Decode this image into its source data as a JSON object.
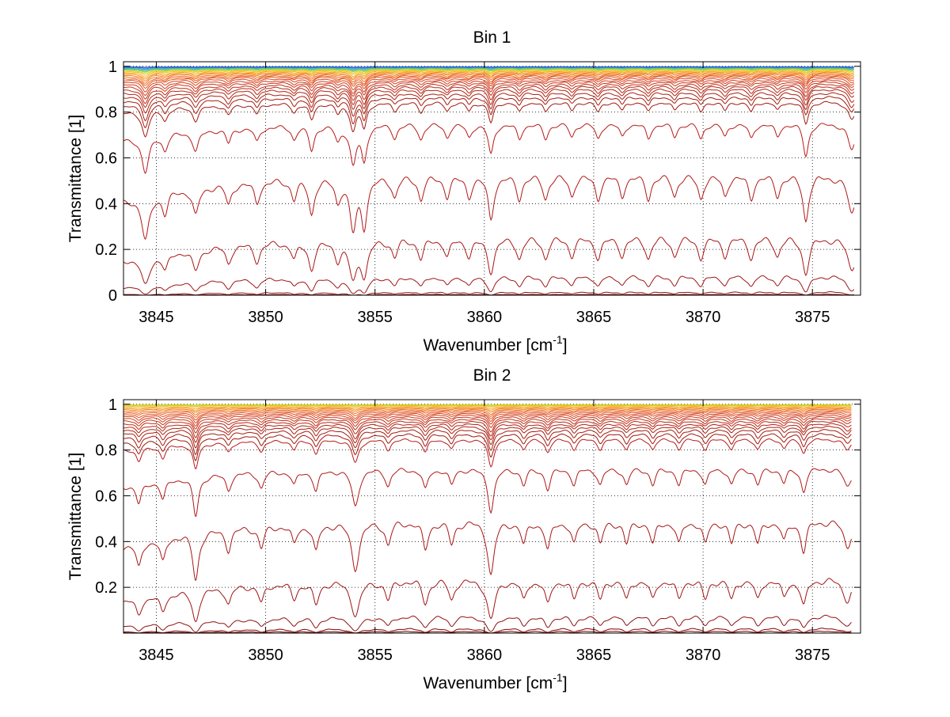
{
  "chart_data": [
    {
      "type": "line",
      "title": "Bin 1",
      "xlabel": "Wavenumber [cm",
      "xlabel_sup": "-1",
      "xlabel_tail": "]",
      "ylabel": "Transmittance [1]",
      "xlim": [
        3843.5,
        3877.2
      ],
      "ylim": [
        0,
        1.02
      ],
      "xticks": [
        3845,
        3850,
        3855,
        3860,
        3865,
        3870,
        3875
      ],
      "xtick_labels": [
        "3845",
        "3850",
        "3855",
        "3860",
        "3865",
        "3870",
        "3875"
      ],
      "yticks": [
        0,
        0.2,
        0.4,
        0.6,
        0.8,
        1
      ],
      "ytick_labels": [
        "0",
        "0.2",
        "0.4",
        "0.6",
        "0.8",
        "1"
      ],
      "grid": true,
      "x_end": 3876.9,
      "line_dips": [
        {
          "x": 3844.5,
          "depth": 1.0,
          "width": 0.18
        },
        {
          "x": 3845.4,
          "depth": 0.4,
          "width": 0.14
        },
        {
          "x": 3846.8,
          "depth": 0.5,
          "width": 0.16
        },
        {
          "x": 3848.3,
          "depth": 0.35,
          "width": 0.14
        },
        {
          "x": 3849.6,
          "depth": 0.35,
          "width": 0.14
        },
        {
          "x": 3851.3,
          "depth": 0.3,
          "width": 0.14
        },
        {
          "x": 3852.1,
          "depth": 0.6,
          "width": 0.14
        },
        {
          "x": 3853.3,
          "depth": 0.35,
          "width": 0.14
        },
        {
          "x": 3854.0,
          "depth": 1.0,
          "width": 0.16
        },
        {
          "x": 3854.5,
          "depth": 0.9,
          "width": 0.14
        },
        {
          "x": 3855.9,
          "depth": 0.3,
          "width": 0.14
        },
        {
          "x": 3857.1,
          "depth": 0.35,
          "width": 0.14
        },
        {
          "x": 3858.3,
          "depth": 0.3,
          "width": 0.14
        },
        {
          "x": 3859.3,
          "depth": 0.3,
          "width": 0.14
        },
        {
          "x": 3860.3,
          "depth": 0.75,
          "width": 0.14
        },
        {
          "x": 3861.6,
          "depth": 0.35,
          "width": 0.14
        },
        {
          "x": 3862.8,
          "depth": 0.35,
          "width": 0.14
        },
        {
          "x": 3864.0,
          "depth": 0.3,
          "width": 0.14
        },
        {
          "x": 3865.2,
          "depth": 0.35,
          "width": 0.14
        },
        {
          "x": 3866.3,
          "depth": 0.3,
          "width": 0.14
        },
        {
          "x": 3867.5,
          "depth": 0.35,
          "width": 0.14
        },
        {
          "x": 3868.7,
          "depth": 0.3,
          "width": 0.14
        },
        {
          "x": 3869.9,
          "depth": 0.35,
          "width": 0.14
        },
        {
          "x": 3871.0,
          "depth": 0.3,
          "width": 0.14
        },
        {
          "x": 3872.2,
          "depth": 0.35,
          "width": 0.14
        },
        {
          "x": 3873.4,
          "depth": 0.3,
          "width": 0.14
        },
        {
          "x": 3874.7,
          "depth": 0.8,
          "width": 0.14
        },
        {
          "x": 3876.8,
          "depth": 0.65,
          "width": 0.2
        }
      ],
      "curve_levels": [
        0.998,
        0.996,
        0.994,
        0.992,
        0.99,
        0.988,
        0.985,
        0.982,
        0.978,
        0.974,
        0.97,
        0.965,
        0.96,
        0.955,
        0.948,
        0.94,
        0.932,
        0.922,
        0.912,
        0.9,
        0.885,
        0.868,
        0.845,
        0.75,
        0.52,
        0.25,
        0.085,
        0.015,
        0.004
      ],
      "curve_colors": [
        "#1f3fbf",
        "#2a6fd6",
        "#3a9fe0",
        "#3fc0c9",
        "#5ec86a",
        "#a8d03a",
        "#d8d020",
        "#f0c020",
        "#f5a820",
        "#f59420",
        "#f28020",
        "#ee7020",
        "#e86020",
        "#e05020",
        "#d84420",
        "#d03c1c",
        "#c8341a",
        "#c02e18",
        "#b82816",
        "#b02414",
        "#aa2012",
        "#a41c10",
        "#a0180e",
        "#b81a1a",
        "#b01818",
        "#a81616",
        "#a01414",
        "#901010",
        "#800000"
      ]
    },
    {
      "type": "line",
      "title": "Bin 2",
      "xlabel": "Wavenumber [cm",
      "xlabel_sup": "-1",
      "xlabel_tail": "]",
      "ylabel": "Transmittance [1]",
      "xlim": [
        3843.5,
        3877.2
      ],
      "ylim": [
        0,
        1.02
      ],
      "xticks": [
        3845,
        3850,
        3855,
        3860,
        3865,
        3870,
        3875
      ],
      "xtick_labels": [
        "3845",
        "3850",
        "3855",
        "3860",
        "3865",
        "3870",
        "3875"
      ],
      "yticks": [
        0.2,
        0.4,
        0.6,
        0.8,
        1
      ],
      "ytick_labels": [
        "0.2",
        "0.4",
        "0.6",
        "0.8",
        "1"
      ],
      "grid": true,
      "x_end": 3876.8,
      "line_dips": [
        {
          "x": 3844.2,
          "depth": 0.5,
          "width": 0.14
        },
        {
          "x": 3845.3,
          "depth": 0.45,
          "width": 0.14
        },
        {
          "x": 3846.8,
          "depth": 1.0,
          "width": 0.14
        },
        {
          "x": 3848.3,
          "depth": 0.35,
          "width": 0.14
        },
        {
          "x": 3849.8,
          "depth": 0.35,
          "width": 0.14
        },
        {
          "x": 3851.3,
          "depth": 0.3,
          "width": 0.14
        },
        {
          "x": 3852.3,
          "depth": 0.45,
          "width": 0.14
        },
        {
          "x": 3854.1,
          "depth": 0.85,
          "width": 0.18
        },
        {
          "x": 3855.6,
          "depth": 0.35,
          "width": 0.14
        },
        {
          "x": 3857.3,
          "depth": 0.45,
          "width": 0.14
        },
        {
          "x": 3858.5,
          "depth": 0.35,
          "width": 0.14
        },
        {
          "x": 3860.3,
          "depth": 1.0,
          "width": 0.16
        },
        {
          "x": 3861.8,
          "depth": 0.35,
          "width": 0.14
        },
        {
          "x": 3862.9,
          "depth": 0.45,
          "width": 0.14
        },
        {
          "x": 3864.1,
          "depth": 0.35,
          "width": 0.14
        },
        {
          "x": 3865.3,
          "depth": 0.35,
          "width": 0.14
        },
        {
          "x": 3866.5,
          "depth": 0.35,
          "width": 0.14
        },
        {
          "x": 3867.7,
          "depth": 0.35,
          "width": 0.14
        },
        {
          "x": 3868.9,
          "depth": 0.35,
          "width": 0.14
        },
        {
          "x": 3870.1,
          "depth": 0.35,
          "width": 0.14
        },
        {
          "x": 3871.3,
          "depth": 0.35,
          "width": 0.14
        },
        {
          "x": 3872.5,
          "depth": 0.35,
          "width": 0.14
        },
        {
          "x": 3873.7,
          "depth": 0.3,
          "width": 0.14
        },
        {
          "x": 3874.6,
          "depth": 0.5,
          "width": 0.14
        },
        {
          "x": 3876.6,
          "depth": 0.4,
          "width": 0.2
        }
      ],
      "curve_levels": [
        0.998,
        0.996,
        0.994,
        0.99,
        0.986,
        0.982,
        0.977,
        0.972,
        0.966,
        0.96,
        0.953,
        0.945,
        0.936,
        0.926,
        0.915,
        0.903,
        0.888,
        0.87,
        0.848,
        0.72,
        0.49,
        0.235,
        0.075,
        0.02,
        0.008
      ],
      "curve_colors": [
        "#b8d820",
        "#d8d020",
        "#f0c020",
        "#f5a820",
        "#f59420",
        "#f28020",
        "#ee7020",
        "#e86020",
        "#e05020",
        "#d84420",
        "#d03c1c",
        "#c8341a",
        "#c02e18",
        "#b82816",
        "#b02414",
        "#aa2012",
        "#a41c10",
        "#a0180e",
        "#b81a1a",
        "#b01818",
        "#a81616",
        "#a01414",
        "#901010",
        "#800000",
        "#700000"
      ]
    }
  ]
}
